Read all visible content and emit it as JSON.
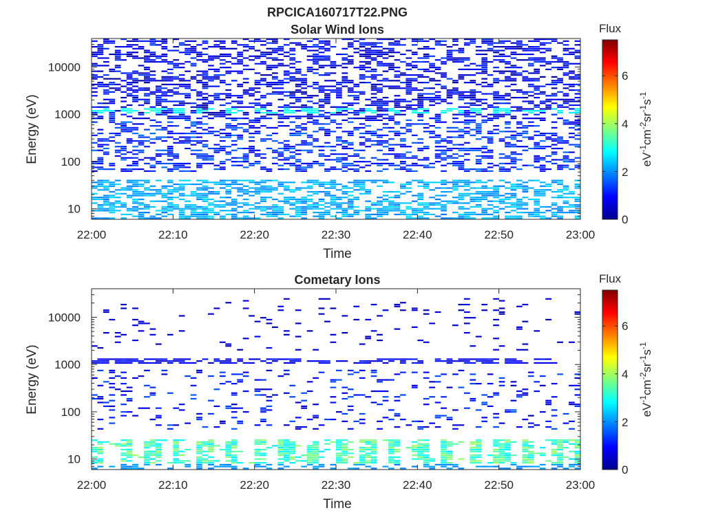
{
  "figure": {
    "title": "RPCICA160717T22.PNG"
  },
  "chart_data": [
    {
      "type": "heatmap",
      "title": "Solar Wind Ions",
      "xlabel": "Time",
      "ylabel": "Energy (eV)",
      "x_ticks": [
        "22:00",
        "22:10",
        "22:20",
        "22:30",
        "22:40",
        "22:50",
        "23:00"
      ],
      "x_range": [
        "22:00",
        "23:00"
      ],
      "y_scale": "log",
      "y_ticks": [
        "10",
        "100",
        "1000",
        "10000"
      ],
      "y_range": [
        6,
        40000
      ],
      "colorbar": {
        "title": "Flux",
        "label": "eV-1cm-2sr-1s-1",
        "ticks": [
          "0",
          "2",
          "4",
          "6"
        ],
        "range": [
          0,
          7.5
        ],
        "colormap": "jet"
      },
      "pattern": {
        "bands": [
          {
            "energy_range": [
              800,
              40000
            ],
            "level_range": [
              0.2,
              1.4
            ],
            "density": 0.42
          },
          {
            "energy_range": [
              1000,
              1400
            ],
            "level_range": [
              2.5,
              3.2
            ],
            "density": 0.7,
            "periodic_minutes": 3.3
          },
          {
            "energy_range": [
              60,
              800
            ],
            "level_range": [
              0.6,
              1.8
            ],
            "density": 0.35
          },
          {
            "energy_range": [
              6,
              40
            ],
            "level_range": [
              1.8,
              2.6
            ],
            "density": 0.5
          }
        ]
      }
    },
    {
      "type": "heatmap",
      "title": "Cometary Ions",
      "xlabel": "Time",
      "ylabel": "Energy (eV)",
      "x_ticks": [
        "22:00",
        "22:10",
        "22:20",
        "22:30",
        "22:40",
        "22:50",
        "23:00"
      ],
      "x_range": [
        "22:00",
        "23:00"
      ],
      "y_scale": "log",
      "y_ticks": [
        "10",
        "100",
        "1000",
        "10000"
      ],
      "y_range": [
        6,
        40000
      ],
      "colorbar": {
        "title": "Flux",
        "label": "eV-1cm-2sr-1s-1",
        "ticks": [
          "0",
          "2",
          "4",
          "6"
        ],
        "range": [
          0,
          7.5
        ],
        "colormap": "jet"
      },
      "pattern": {
        "bands": [
          {
            "energy_range": [
              2000,
              30000
            ],
            "level_range": [
              0.3,
              0.8
            ],
            "density": 0.05
          },
          {
            "energy_range": [
              1000,
              1400
            ],
            "level_range": [
              0.5,
              1.2
            ],
            "density": 0.55
          },
          {
            "energy_range": [
              40,
              800
            ],
            "level_range": [
              0.4,
              1.6
            ],
            "density": 0.12
          },
          {
            "energy_range": [
              8,
              25
            ],
            "level_range": [
              2.6,
              4.0
            ],
            "density": 0.8,
            "periodic_minutes": 3.3
          },
          {
            "energy_range": [
              6,
              8
            ],
            "level_range": [
              1.8,
              2.2
            ],
            "density": 0.35
          }
        ]
      }
    }
  ]
}
